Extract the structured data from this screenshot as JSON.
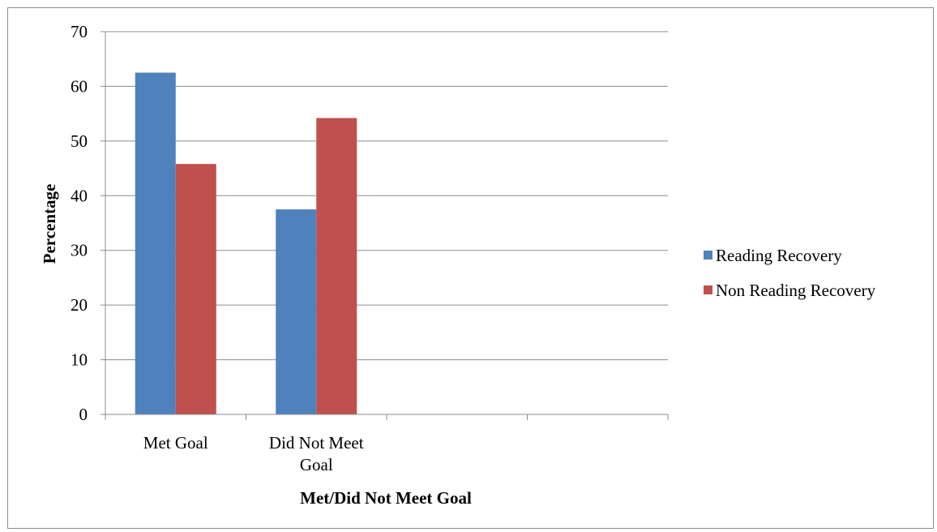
{
  "chart_data": {
    "type": "bar",
    "categories": [
      [
        "Met Goal"
      ],
      [
        "Did Not Meet",
        "Goal"
      ],
      [
        ""
      ],
      [
        ""
      ]
    ],
    "series": [
      {
        "name": "Reading Recovery",
        "color": "#4f81bd",
        "values": [
          62.5,
          37.5,
          null,
          null
        ]
      },
      {
        "name": "Non Reading Recovery",
        "color": "#c0504d",
        "values": [
          45.8,
          54.2,
          null,
          null
        ]
      }
    ],
    "xlabel": "Met/Did Not Meet Goal",
    "ylabel": "Percentage",
    "ylim": [
      0,
      70
    ],
    "yticks": [
      0,
      10,
      20,
      30,
      40,
      50,
      60,
      70
    ],
    "grid": true,
    "legend_position": "right"
  }
}
